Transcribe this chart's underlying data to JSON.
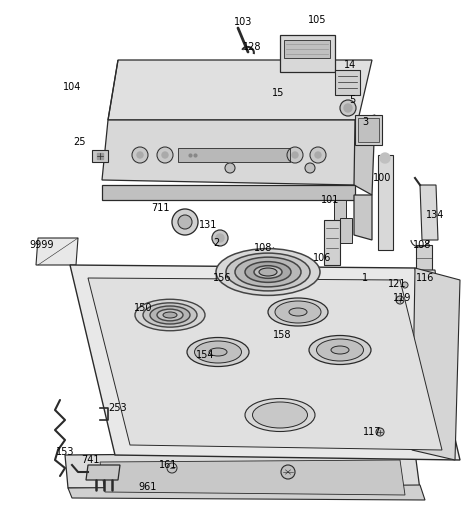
{
  "bg": "#ffffff",
  "lc": "#2a2a2a",
  "fc": "#f5f5f5",
  "fc2": "#e8e8e8",
  "fc3": "#d8d8d8",
  "lw": 0.9,
  "label_fs": 7.0,
  "label_color": "#000000"
}
